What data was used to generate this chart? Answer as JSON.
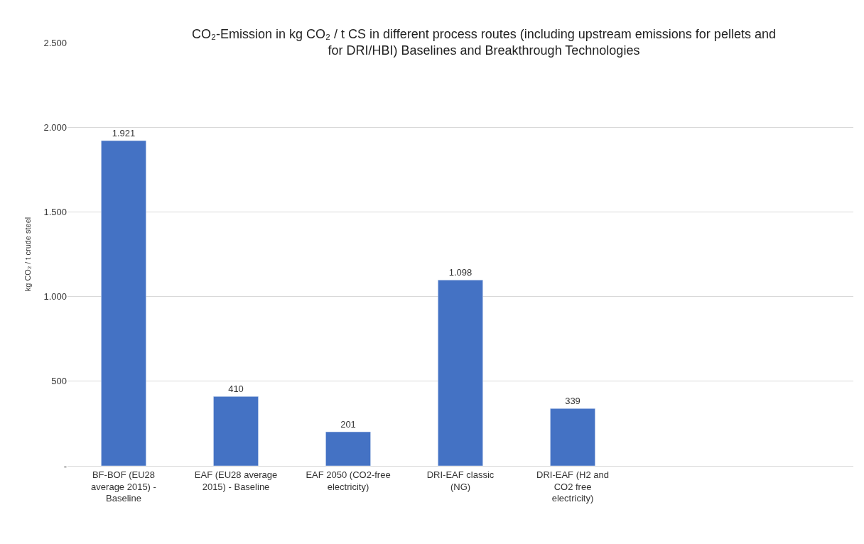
{
  "chart_data": {
    "type": "bar",
    "title": "CO₂-Emission in kg CO₂ / t CS in different process routes (including upstream emissions for pellets and for DRI/HBI) Baselines and Breakthrough Technologies",
    "ylabel": "kg CO₂ / t crude steel",
    "categories": [
      "BF-BOF (EU28 average 2015) - Baseline",
      "EAF (EU28 average 2015) - Baseline",
      "EAF 2050 (CO2-free electricity)",
      "DRI-EAF classic (NG)",
      "DRI-EAF (H2 and CO2 free electricity)",
      null,
      null
    ],
    "values": [
      1921,
      410,
      201,
      1098,
      339,
      null,
      null
    ],
    "value_labels": [
      "1.921",
      "410",
      "201",
      "1.098",
      "339",
      null,
      null
    ],
    "color": "#4472c4",
    "ylim": [
      0,
      2500
    ],
    "yticks": [
      {
        "value": 0,
        "label": "-"
      },
      {
        "value": 500,
        "label": "500"
      },
      {
        "value": 1000,
        "label": "1.000"
      },
      {
        "value": 1500,
        "label": "1.500"
      },
      {
        "value": 2000,
        "label": "2.000"
      },
      {
        "value": 2500,
        "label": "2.500"
      }
    ],
    "grid": "y",
    "legend": false
  }
}
